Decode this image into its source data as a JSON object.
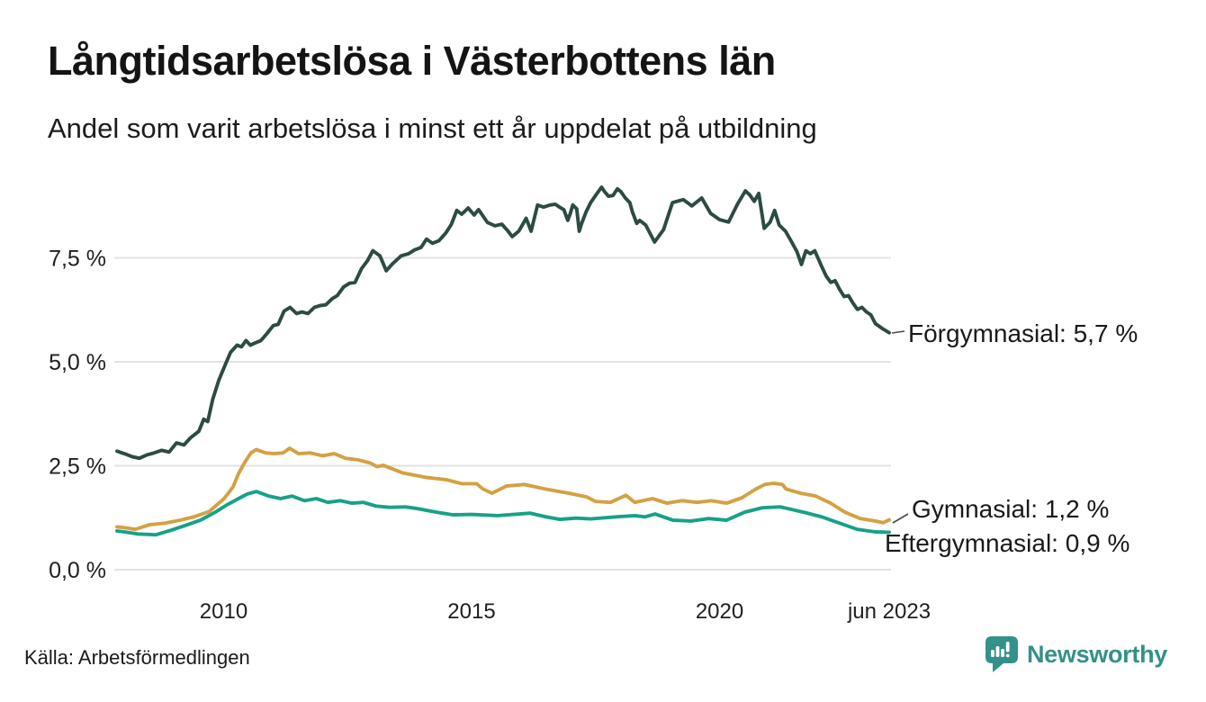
{
  "header": {
    "title": "Långtidsarbetslösa i Västerbottens län",
    "subtitle": "Andel som varit arbetslösa i minst ett år uppdelat på utbildning"
  },
  "footer": {
    "source": "Källa: Arbetsförmedlingen",
    "brand": "Newsworthy"
  },
  "colors": {
    "forgymnasial": "#2c4b44",
    "gymnasial": "#d4a142",
    "eftergymnasial": "#17a189",
    "gridline": "#e3e3e3",
    "tick_text": "#1f1f1f",
    "leader": "#4a4a4a",
    "brand_teal": "#33918a"
  },
  "chart_data": {
    "type": "line",
    "title": "Långtidsarbetslösa i Västerbottens län",
    "subtitle": "Andel som varit arbetslösa i minst ett år uppdelat på utbildning",
    "xlabel": "",
    "ylabel": "",
    "grid": "horizontal",
    "legend_position": "line-end-labels",
    "x_domain": [
      2007.85,
      2023.42
    ],
    "y_domain": [
      0,
      9.7
    ],
    "y_ticks": [
      {
        "value": 0.0,
        "label": "0,0 %"
      },
      {
        "value": 2.5,
        "label": "2,5 %"
      },
      {
        "value": 5.0,
        "label": "5,0 %"
      },
      {
        "value": 7.5,
        "label": "7,5 %"
      }
    ],
    "x_ticks": [
      {
        "value": 2010,
        "label": "2010"
      },
      {
        "value": 2015,
        "label": "2015"
      },
      {
        "value": 2020,
        "label": "2020"
      },
      {
        "value": 2023.42,
        "label": "jun 2023"
      }
    ],
    "series": [
      {
        "name": "Förgymnasial",
        "color": "#2c4b44",
        "end_value": 5.7,
        "end_value_label": "Förgymnasial: 5,7 %",
        "points": [
          [
            2007.85,
            2.85
          ],
          [
            2008.0,
            2.79
          ],
          [
            2008.15,
            2.72
          ],
          [
            2008.3,
            2.68
          ],
          [
            2008.45,
            2.76
          ],
          [
            2008.6,
            2.81
          ],
          [
            2008.75,
            2.87
          ],
          [
            2008.9,
            2.83
          ],
          [
            2009.05,
            3.05
          ],
          [
            2009.2,
            3.0
          ],
          [
            2009.33,
            3.17
          ],
          [
            2009.5,
            3.33
          ],
          [
            2009.6,
            3.62
          ],
          [
            2009.68,
            3.56
          ],
          [
            2009.78,
            4.1
          ],
          [
            2009.9,
            4.55
          ],
          [
            2010.04,
            4.95
          ],
          [
            2010.14,
            5.23
          ],
          [
            2010.27,
            5.4
          ],
          [
            2010.36,
            5.36
          ],
          [
            2010.45,
            5.51
          ],
          [
            2010.54,
            5.4
          ],
          [
            2010.63,
            5.45
          ],
          [
            2010.75,
            5.51
          ],
          [
            2010.86,
            5.66
          ],
          [
            2011.0,
            5.87
          ],
          [
            2011.1,
            5.9
          ],
          [
            2011.22,
            6.22
          ],
          [
            2011.34,
            6.31
          ],
          [
            2011.47,
            6.16
          ],
          [
            2011.58,
            6.2
          ],
          [
            2011.7,
            6.16
          ],
          [
            2011.83,
            6.31
          ],
          [
            2011.94,
            6.35
          ],
          [
            2012.06,
            6.37
          ],
          [
            2012.19,
            6.52
          ],
          [
            2012.29,
            6.59
          ],
          [
            2012.42,
            6.8
          ],
          [
            2012.54,
            6.89
          ],
          [
            2012.65,
            6.91
          ],
          [
            2012.78,
            7.24
          ],
          [
            2012.9,
            7.43
          ],
          [
            2013.01,
            7.67
          ],
          [
            2013.15,
            7.55
          ],
          [
            2013.28,
            7.19
          ],
          [
            2013.4,
            7.35
          ],
          [
            2013.58,
            7.55
          ],
          [
            2013.73,
            7.6
          ],
          [
            2013.85,
            7.69
          ],
          [
            2013.98,
            7.75
          ],
          [
            2014.09,
            7.95
          ],
          [
            2014.21,
            7.85
          ],
          [
            2014.34,
            7.91
          ],
          [
            2014.48,
            8.1
          ],
          [
            2014.59,
            8.3
          ],
          [
            2014.7,
            8.64
          ],
          [
            2014.8,
            8.55
          ],
          [
            2014.93,
            8.7
          ],
          [
            2015.05,
            8.53
          ],
          [
            2015.14,
            8.66
          ],
          [
            2015.32,
            8.35
          ],
          [
            2015.47,
            8.27
          ],
          [
            2015.61,
            8.31
          ],
          [
            2015.73,
            8.15
          ],
          [
            2015.82,
            8.01
          ],
          [
            2015.95,
            8.14
          ],
          [
            2016.1,
            8.45
          ],
          [
            2016.2,
            8.14
          ],
          [
            2016.33,
            8.77
          ],
          [
            2016.45,
            8.72
          ],
          [
            2016.58,
            8.77
          ],
          [
            2016.69,
            8.79
          ],
          [
            2016.77,
            8.72
          ],
          [
            2016.86,
            8.66
          ],
          [
            2016.94,
            8.4
          ],
          [
            2016.99,
            8.57
          ],
          [
            2017.04,
            8.77
          ],
          [
            2017.12,
            8.68
          ],
          [
            2017.17,
            8.14
          ],
          [
            2017.22,
            8.33
          ],
          [
            2017.31,
            8.61
          ],
          [
            2017.4,
            8.83
          ],
          [
            2017.53,
            9.05
          ],
          [
            2017.62,
            9.2
          ],
          [
            2017.67,
            9.11
          ],
          [
            2017.76,
            8.98
          ],
          [
            2017.85,
            9.0
          ],
          [
            2017.94,
            9.16
          ],
          [
            2018.01,
            9.09
          ],
          [
            2018.1,
            8.94
          ],
          [
            2018.19,
            8.83
          ],
          [
            2018.24,
            8.61
          ],
          [
            2018.33,
            8.33
          ],
          [
            2018.39,
            8.4
          ],
          [
            2018.51,
            8.29
          ],
          [
            2018.69,
            7.88
          ],
          [
            2018.87,
            8.18
          ],
          [
            2019.05,
            8.83
          ],
          [
            2019.27,
            8.9
          ],
          [
            2019.44,
            8.75
          ],
          [
            2019.64,
            8.94
          ],
          [
            2019.82,
            8.57
          ],
          [
            2020.0,
            8.42
          ],
          [
            2020.18,
            8.36
          ],
          [
            2020.36,
            8.79
          ],
          [
            2020.52,
            9.11
          ],
          [
            2020.61,
            9.01
          ],
          [
            2020.7,
            8.86
          ],
          [
            2020.79,
            9.05
          ],
          [
            2020.9,
            8.21
          ],
          [
            2021.02,
            8.36
          ],
          [
            2021.11,
            8.64
          ],
          [
            2021.2,
            8.29
          ],
          [
            2021.33,
            8.14
          ],
          [
            2021.43,
            7.93
          ],
          [
            2021.56,
            7.65
          ],
          [
            2021.65,
            7.34
          ],
          [
            2021.74,
            7.67
          ],
          [
            2021.83,
            7.6
          ],
          [
            2021.92,
            7.67
          ],
          [
            2022.04,
            7.34
          ],
          [
            2022.15,
            7.06
          ],
          [
            2022.24,
            6.91
          ],
          [
            2022.33,
            6.95
          ],
          [
            2022.42,
            6.74
          ],
          [
            2022.51,
            6.57
          ],
          [
            2022.6,
            6.59
          ],
          [
            2022.69,
            6.41
          ],
          [
            2022.78,
            6.26
          ],
          [
            2022.87,
            6.31
          ],
          [
            2022.96,
            6.2
          ],
          [
            2023.05,
            6.13
          ],
          [
            2023.14,
            5.92
          ],
          [
            2023.28,
            5.8
          ],
          [
            2023.42,
            5.7
          ]
        ]
      },
      {
        "name": "Gymnasial",
        "color": "#d4a142",
        "end_value": 1.2,
        "end_value_label": "Gymnasial: 1,2 %",
        "points": [
          [
            2007.85,
            1.03
          ],
          [
            2008.0,
            1.01
          ],
          [
            2008.22,
            0.97
          ],
          [
            2008.5,
            1.08
          ],
          [
            2008.81,
            1.12
          ],
          [
            2009.12,
            1.19
          ],
          [
            2009.4,
            1.27
          ],
          [
            2009.71,
            1.4
          ],
          [
            2010.01,
            1.71
          ],
          [
            2010.19,
            1.99
          ],
          [
            2010.3,
            2.31
          ],
          [
            2010.43,
            2.59
          ],
          [
            2010.55,
            2.81
          ],
          [
            2010.66,
            2.89
          ],
          [
            2010.84,
            2.81
          ],
          [
            2011.02,
            2.79
          ],
          [
            2011.2,
            2.81
          ],
          [
            2011.33,
            2.92
          ],
          [
            2011.51,
            2.79
          ],
          [
            2011.74,
            2.81
          ],
          [
            2011.99,
            2.74
          ],
          [
            2012.23,
            2.79
          ],
          [
            2012.46,
            2.68
          ],
          [
            2012.71,
            2.64
          ],
          [
            2012.95,
            2.57
          ],
          [
            2013.09,
            2.48
          ],
          [
            2013.22,
            2.51
          ],
          [
            2013.61,
            2.33
          ],
          [
            2014.08,
            2.22
          ],
          [
            2014.51,
            2.16
          ],
          [
            2014.8,
            2.07
          ],
          [
            2015.1,
            2.07
          ],
          [
            2015.23,
            1.94
          ],
          [
            2015.41,
            1.84
          ],
          [
            2015.7,
            2.01
          ],
          [
            2016.06,
            2.05
          ],
          [
            2016.49,
            1.94
          ],
          [
            2016.96,
            1.84
          ],
          [
            2017.32,
            1.75
          ],
          [
            2017.5,
            1.64
          ],
          [
            2017.8,
            1.62
          ],
          [
            2018.11,
            1.79
          ],
          [
            2018.29,
            1.62
          ],
          [
            2018.65,
            1.71
          ],
          [
            2018.94,
            1.6
          ],
          [
            2019.24,
            1.66
          ],
          [
            2019.55,
            1.62
          ],
          [
            2019.83,
            1.66
          ],
          [
            2020.14,
            1.6
          ],
          [
            2020.45,
            1.73
          ],
          [
            2020.73,
            1.94
          ],
          [
            2020.91,
            2.05
          ],
          [
            2021.09,
            2.08
          ],
          [
            2021.27,
            2.05
          ],
          [
            2021.34,
            1.94
          ],
          [
            2021.63,
            1.84
          ],
          [
            2021.94,
            1.77
          ],
          [
            2022.24,
            1.6
          ],
          [
            2022.53,
            1.38
          ],
          [
            2022.84,
            1.23
          ],
          [
            2023.14,
            1.17
          ],
          [
            2023.3,
            1.13
          ],
          [
            2023.42,
            1.2
          ]
        ]
      },
      {
        "name": "Eftergymnasial",
        "color": "#17a189",
        "end_value": 0.9,
        "end_value_label": "Eftergymnasial: 0,9 %",
        "points": [
          [
            2007.85,
            0.93
          ],
          [
            2008.0,
            0.91
          ],
          [
            2008.27,
            0.86
          ],
          [
            2008.63,
            0.84
          ],
          [
            2008.94,
            0.95
          ],
          [
            2009.22,
            1.06
          ],
          [
            2009.53,
            1.19
          ],
          [
            2009.83,
            1.38
          ],
          [
            2010.07,
            1.56
          ],
          [
            2010.3,
            1.71
          ],
          [
            2010.48,
            1.82
          ],
          [
            2010.66,
            1.88
          ],
          [
            2010.91,
            1.77
          ],
          [
            2011.15,
            1.71
          ],
          [
            2011.38,
            1.77
          ],
          [
            2011.63,
            1.66
          ],
          [
            2011.87,
            1.71
          ],
          [
            2012.1,
            1.62
          ],
          [
            2012.35,
            1.66
          ],
          [
            2012.59,
            1.6
          ],
          [
            2012.82,
            1.62
          ],
          [
            2013.07,
            1.53
          ],
          [
            2013.35,
            1.5
          ],
          [
            2013.66,
            1.51
          ],
          [
            2013.9,
            1.47
          ],
          [
            2014.3,
            1.38
          ],
          [
            2014.62,
            1.32
          ],
          [
            2015.0,
            1.33
          ],
          [
            2015.52,
            1.3
          ],
          [
            2015.85,
            1.33
          ],
          [
            2016.18,
            1.36
          ],
          [
            2016.5,
            1.27
          ],
          [
            2016.78,
            1.21
          ],
          [
            2017.1,
            1.24
          ],
          [
            2017.4,
            1.22
          ],
          [
            2017.68,
            1.25
          ],
          [
            2018.0,
            1.28
          ],
          [
            2018.29,
            1.3
          ],
          [
            2018.5,
            1.27
          ],
          [
            2018.7,
            1.34
          ],
          [
            2019.06,
            1.19
          ],
          [
            2019.42,
            1.17
          ],
          [
            2019.78,
            1.23
          ],
          [
            2020.14,
            1.19
          ],
          [
            2020.5,
            1.38
          ],
          [
            2020.86,
            1.49
          ],
          [
            2021.22,
            1.51
          ],
          [
            2021.45,
            1.45
          ],
          [
            2021.7,
            1.38
          ],
          [
            2022.06,
            1.27
          ],
          [
            2022.42,
            1.12
          ],
          [
            2022.78,
            0.97
          ],
          [
            2023.14,
            0.91
          ],
          [
            2023.42,
            0.9
          ]
        ]
      }
    ]
  }
}
